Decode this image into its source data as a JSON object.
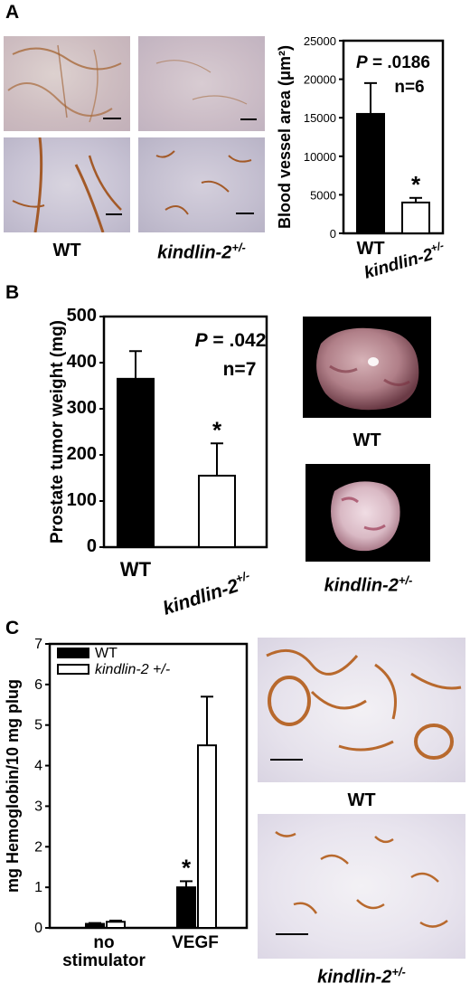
{
  "panels": {
    "a": {
      "label": "A",
      "photo_labels": [
        "WT",
        "kindlin-2",
        "+/-"
      ]
    },
    "b": {
      "label": "B",
      "photo_labels": [
        "WT",
        "kindlin-2",
        "+/-"
      ]
    },
    "c": {
      "label": "C",
      "photo_labels": [
        "WT",
        "kindlin-2",
        "+/-"
      ]
    }
  },
  "chart_data": [
    {
      "id": "blood-vessel-area",
      "type": "bar",
      "categories": [
        "WT",
        "kindlin-2+/-"
      ],
      "category_main": [
        "WT",
        "kindlin-2"
      ],
      "category_sup": [
        "",
        "+/-"
      ],
      "values": [
        15500,
        4000
      ],
      "errors": [
        4000,
        600
      ],
      "significance": [
        "",
        "*"
      ],
      "bar_colors": [
        "#000000",
        "#ffffff"
      ],
      "ylabel": "Blood vessel area (μm²)",
      "ylim": [
        0,
        25000
      ],
      "yticks": [
        0,
        5000,
        10000,
        15000,
        20000,
        25000
      ],
      "annotations": [
        "P = .0186",
        "n=6"
      ]
    },
    {
      "id": "prostate-tumor-weight",
      "type": "bar",
      "categories": [
        "WT",
        "kindlin-2+/-"
      ],
      "category_main": [
        "WT",
        "kindlin-2"
      ],
      "category_sup": [
        "",
        "+/-"
      ],
      "values": [
        365,
        155
      ],
      "errors": [
        60,
        70
      ],
      "significance": [
        "",
        "*"
      ],
      "bar_colors": [
        "#000000",
        "#ffffff"
      ],
      "ylabel": "Prostate tumor weight (mg)",
      "ylim": [
        0,
        500
      ],
      "yticks": [
        0,
        100,
        200,
        300,
        400,
        500
      ],
      "annotations": [
        "P = .042",
        "n=7"
      ]
    },
    {
      "id": "hemoglobin",
      "type": "bar",
      "categories": [
        "no stimulator",
        "VEGF"
      ],
      "category_lines": [
        [
          "no",
          "stimulator"
        ],
        [
          "VEGF"
        ]
      ],
      "series": [
        {
          "name": "WT",
          "values": [
            0.1,
            1.0
          ],
          "errors": [
            0.02,
            0.15
          ],
          "color": "#000000",
          "significance": [
            "",
            "*"
          ]
        },
        {
          "name": "kindlin-2 +/-",
          "values": [
            0.15,
            4.5
          ],
          "errors": [
            0.03,
            1.2
          ],
          "color": "#ffffff",
          "significance": [
            "",
            ""
          ]
        }
      ],
      "ylabel": "mg Hemoglobin/10 mg plug",
      "ylim": [
        0,
        7
      ],
      "yticks": [
        0,
        1,
        2,
        3,
        4,
        5,
        6,
        7
      ],
      "legend": "top-left"
    }
  ]
}
